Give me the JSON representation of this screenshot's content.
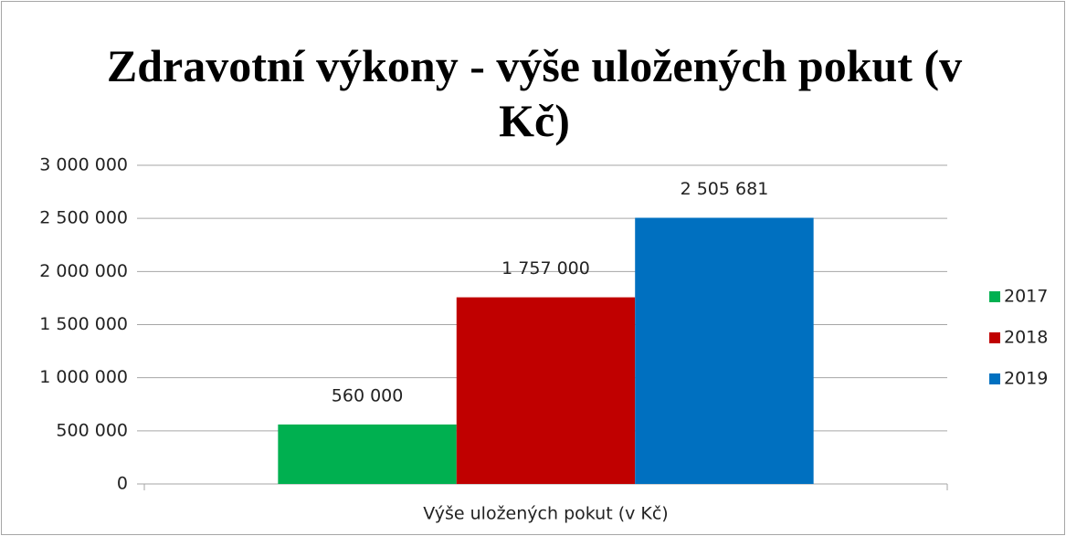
{
  "chart_data": {
    "type": "bar",
    "title": "Zdravotní výkony - výše uložených pokut (v Kč)",
    "categories": [
      "Výše uložených pokut (v Kč)"
    ],
    "series": [
      {
        "name": "2017",
        "color": "#00b050",
        "values": [
          560000
        ],
        "value_labels": [
          "560 000"
        ]
      },
      {
        "name": "2018",
        "color": "#c00000",
        "values": [
          1757000
        ],
        "value_labels": [
          "1 757 000"
        ]
      },
      {
        "name": "2019",
        "color": "#0070c0",
        "values": [
          2505681
        ],
        "value_labels": [
          "2 505 681"
        ]
      }
    ],
    "ylim": [
      0,
      3000000
    ],
    "yticks": [
      0,
      {
        "value": 500000,
        "label": "500 000"
      },
      {
        "value": 1000000,
        "label": "1 000 000"
      },
      {
        "value": 1500000,
        "label": "1 500 000"
      },
      {
        "value": 2000000,
        "label": "2 000 000"
      },
      {
        "value": 2500000,
        "label": "2 500 000"
      },
      {
        "value": 3000000,
        "label": "3 000 000"
      }
    ],
    "grid": true,
    "legend": "right"
  }
}
